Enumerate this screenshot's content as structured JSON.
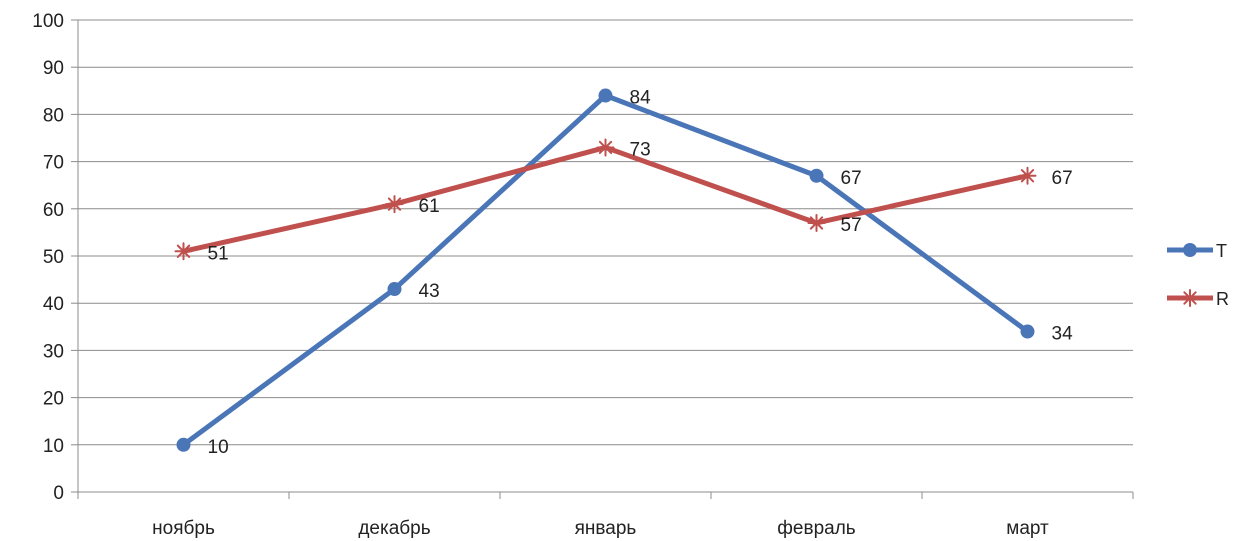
{
  "chart_data": {
    "type": "line",
    "categories": [
      "ноябрь",
      "декабрь",
      "январь",
      "февраль",
      "март"
    ],
    "series": [
      {
        "name": "T",
        "values": [
          10,
          43,
          84,
          67,
          34
        ],
        "color": "#4a76b8",
        "marker": "circle"
      },
      {
        "name": "R",
        "values": [
          51,
          61,
          73,
          57,
          67
        ],
        "color": "#c0504d",
        "marker": "star"
      }
    ],
    "ylim": [
      0,
      100
    ],
    "yticks": [
      0,
      10,
      20,
      30,
      40,
      50,
      60,
      70,
      80,
      90,
      100
    ],
    "grid": true,
    "legend": "right",
    "data_labels": true
  }
}
